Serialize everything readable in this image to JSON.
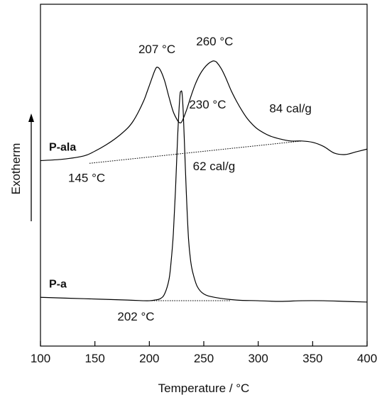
{
  "chart_data": {
    "type": "line",
    "title": "",
    "xlabel": "Temperature / °C",
    "ylabel": "Exotherm",
    "xlim": [
      100,
      400
    ],
    "xticks": [
      100,
      150,
      200,
      250,
      300,
      350,
      400
    ],
    "ylim": [
      -2.7,
      2.35
    ],
    "grid": false,
    "legend": "none",
    "series": [
      {
        "name": "P-ala",
        "x": [
          100,
          120,
          140,
          150,
          160,
          170,
          180,
          185,
          190,
          195,
          198,
          202,
          205,
          207,
          210,
          214,
          218,
          222,
          226,
          228,
          230,
          234,
          238,
          242,
          246,
          250,
          254,
          258,
          260,
          262,
          266,
          270,
          275,
          280,
          285,
          290,
          295,
          300,
          310,
          320,
          330,
          340,
          350,
          360,
          370,
          380,
          390,
          400
        ],
        "y": [
          0.04,
          0.06,
          0.11,
          0.18,
          0.27,
          0.38,
          0.52,
          0.62,
          0.76,
          0.93,
          1.06,
          1.24,
          1.37,
          1.42,
          1.38,
          1.22,
          0.98,
          0.76,
          0.63,
          0.6,
          0.62,
          0.78,
          0.98,
          1.16,
          1.3,
          1.4,
          1.47,
          1.51,
          1.51,
          1.49,
          1.4,
          1.27,
          1.08,
          0.92,
          0.78,
          0.66,
          0.57,
          0.5,
          0.41,
          0.36,
          0.33,
          0.33,
          0.31,
          0.25,
          0.15,
          0.13,
          0.17,
          0.21
        ]
      },
      {
        "name": "P-a",
        "x": [
          100,
          140,
          180,
          195,
          200,
          205,
          210,
          214,
          218,
          220,
          222,
          224,
          226,
          228,
          229,
          230,
          231,
          232,
          234,
          236,
          238,
          240,
          244,
          250,
          260,
          280,
          300,
          320,
          340,
          360,
          380,
          400
        ],
        "y": [
          -1.98,
          -2.0,
          -2.02,
          -2.03,
          -2.03,
          -2.02,
          -2.0,
          -1.93,
          -1.72,
          -1.45,
          -1.05,
          -0.4,
          0.4,
          0.98,
          1.06,
          1.04,
          0.8,
          0.4,
          -0.45,
          -1.12,
          -1.45,
          -1.62,
          -1.82,
          -1.93,
          -1.98,
          -2.02,
          -2.03,
          -2.04,
          -2.03,
          -2.03,
          -2.04,
          -2.05
        ]
      }
    ],
    "baselines": [
      {
        "series": "P-ala",
        "x": [
          145,
          340
        ],
        "y": [
          0.0,
          0.33
        ]
      },
      {
        "series": "P-a",
        "x": [
          202,
          275
        ],
        "y": [
          -2.03,
          -2.03
        ]
      }
    ],
    "annotations": [
      {
        "text": "207 °C",
        "x": 207,
        "y": 1.42
      },
      {
        "text": "260 °C",
        "x": 260,
        "y": 1.51
      },
      {
        "text": "84 cal/g",
        "x": 305,
        "y": 0.5
      },
      {
        "text": "145 °C",
        "x": 145,
        "y": 0.0
      },
      {
        "text": "230 °C",
        "x": 230,
        "y": 1.06
      },
      {
        "text": "62 cal/g",
        "x": 240,
        "y": -0.1
      },
      {
        "text": "202 °C",
        "x": 202,
        "y": -2.03
      }
    ]
  }
}
